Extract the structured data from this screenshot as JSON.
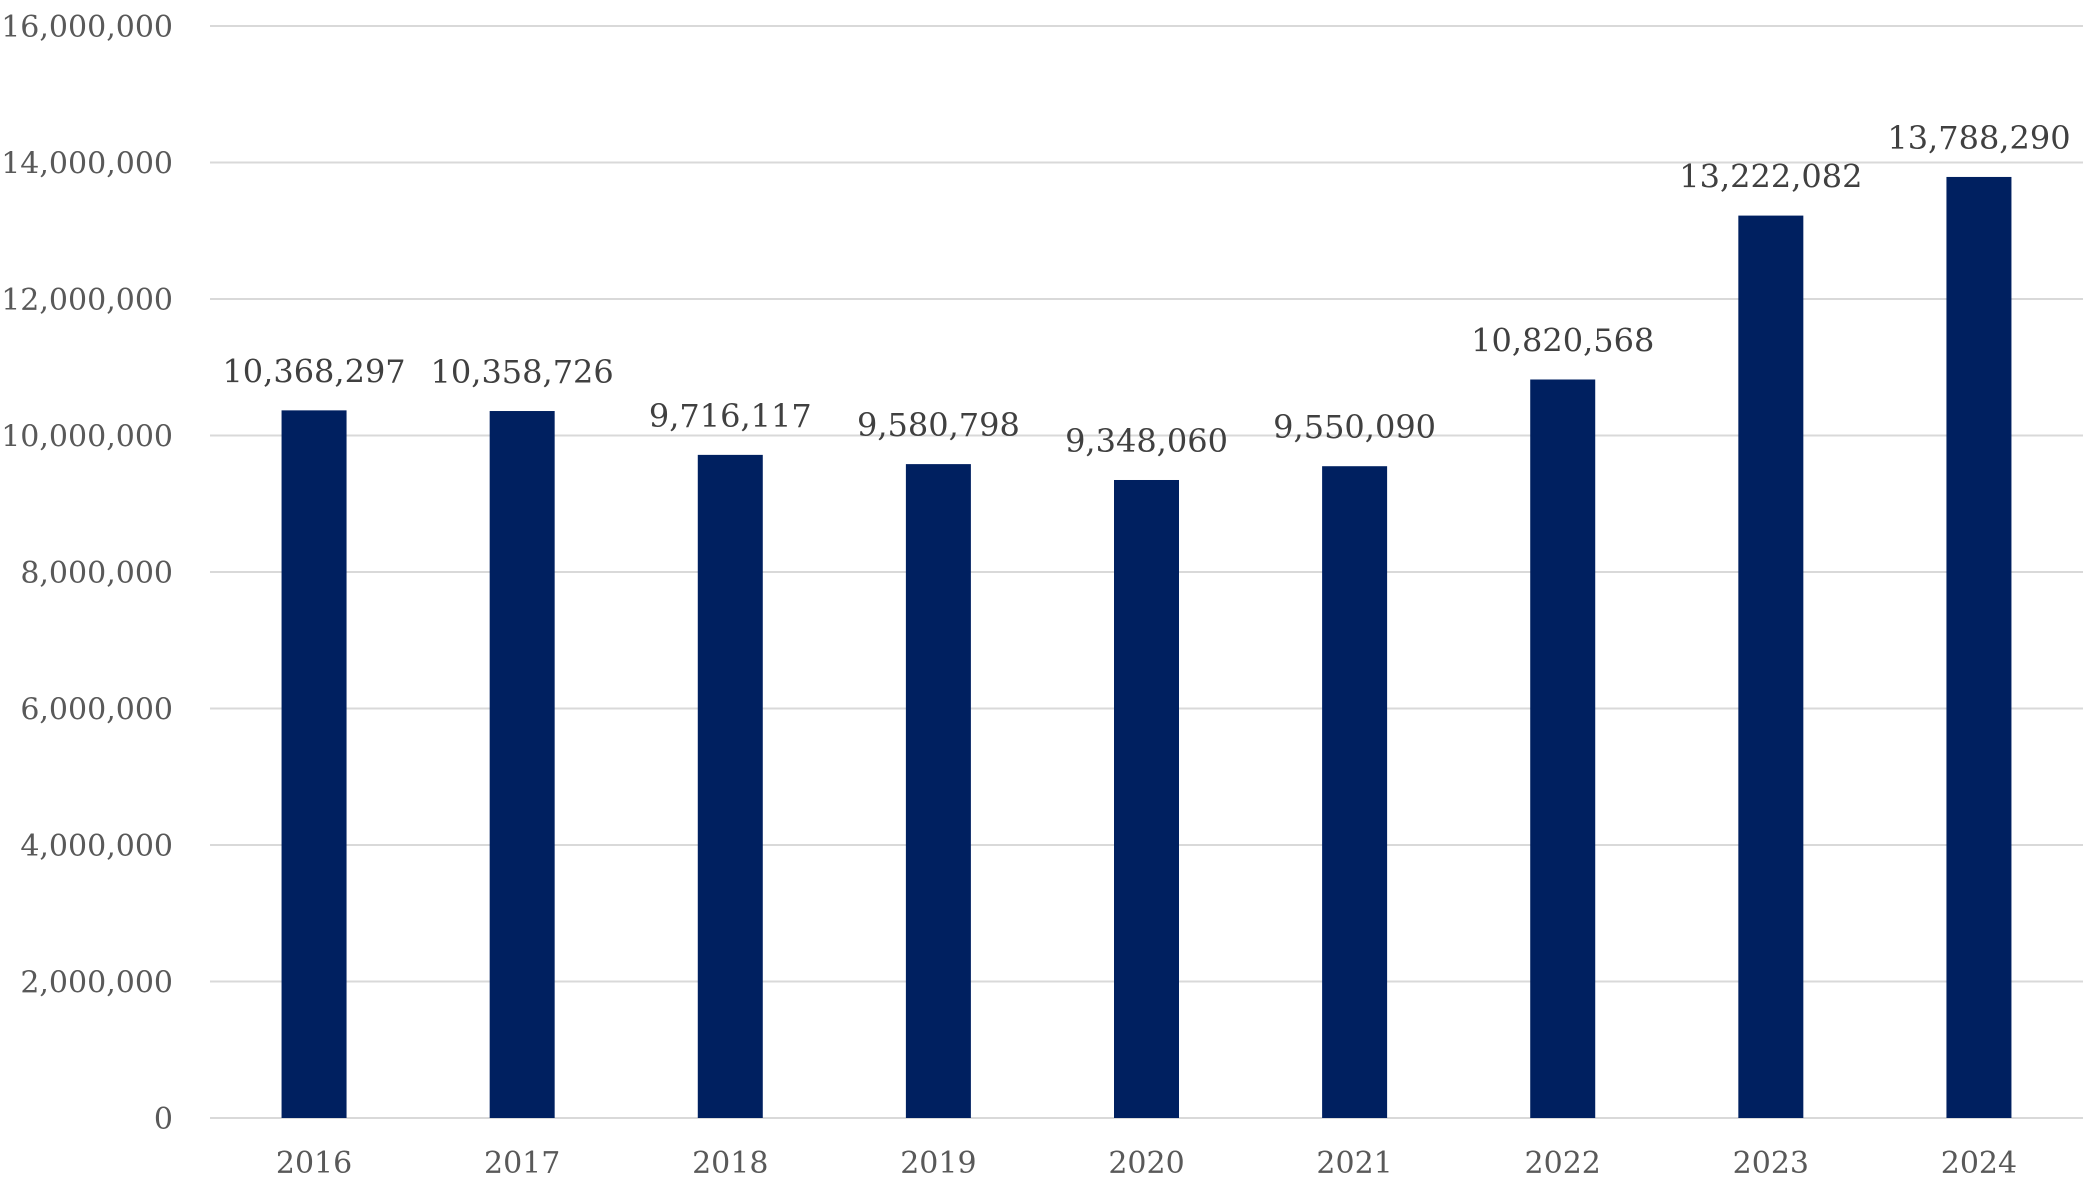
{
  "chart_data": {
    "type": "bar",
    "title": "",
    "xlabel": "",
    "ylabel": "",
    "categories": [
      "2016",
      "2017",
      "2018",
      "2019",
      "2020",
      "2021",
      "2022",
      "2023",
      "2024"
    ],
    "values": [
      10368297,
      10358726,
      9716117,
      9580798,
      9348060,
      9550090,
      10820568,
      13222082,
      13788290
    ],
    "data_labels": [
      "10,368,297",
      "10,358,726",
      "9,716,117",
      "9,580,798",
      "9,348,060",
      "9,550,090",
      "10,820,568",
      "13,222,082",
      "13,788,290"
    ],
    "ylim": [
      0,
      16000000
    ],
    "yticks": [
      0,
      2000000,
      4000000,
      6000000,
      8000000,
      10000000,
      12000000,
      14000000,
      16000000
    ],
    "ytick_labels": [
      "0",
      "2,000,000",
      "4,000,000",
      "6,000,000",
      "8,000,000",
      "10,000,000",
      "12,000,000",
      "14,000,000",
      "16,000,000"
    ],
    "grid": true,
    "legend": "none",
    "bar_color": "#002060"
  }
}
